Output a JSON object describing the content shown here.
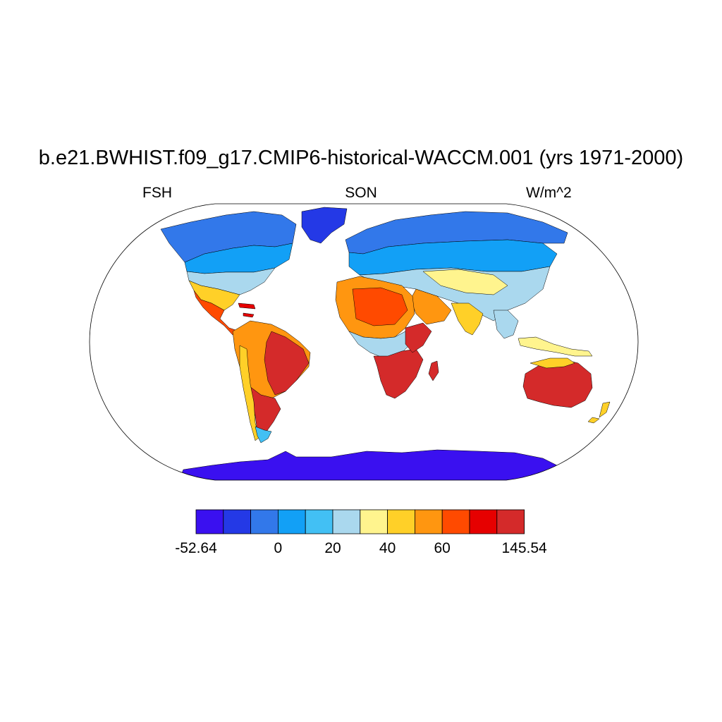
{
  "title": "b.e21.BWHIST.f09_g17.CMIP6-historical-WACCM.001 (yrs 1971-2000)",
  "left_string": "FSH",
  "center_string": "SON",
  "right_string": "W/m^2",
  "colorbar": {
    "colors": [
      "#3a10f0",
      "#2439e6",
      "#3278ea",
      "#12a0f6",
      "#42c0f4",
      "#aad8ee",
      "#fff48e",
      "#ffd028",
      "#ff9610",
      "#ff4a00",
      "#e60000",
      "#d42a2a"
    ],
    "labels": [
      "-52.64",
      "0",
      "20",
      "40",
      "60",
      "145.54"
    ],
    "label_positions": [
      0,
      3,
      5,
      7,
      9,
      12
    ]
  },
  "land_colors": {
    "antarctica": "#3a10f0",
    "greenland": "#2439e6",
    "arctic": "#3278ea",
    "boreal": "#12a0f6",
    "temperate": "#42c0f4",
    "mid": "#aad8ee",
    "warm": "#fff48e",
    "hot": "#ffd028",
    "hotter": "#ff9610",
    "veryhot": "#ff4a00",
    "red": "#e60000",
    "darkred": "#d42a2a"
  }
}
